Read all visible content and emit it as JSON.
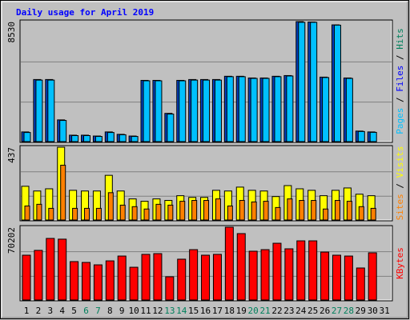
{
  "chart_data": [
    {
      "type": "bar",
      "title": "Daily usage for April 2019",
      "ylim": [
        0,
        8530
      ],
      "yticks": [
        {
          "value": 2843,
          "label": null
        },
        {
          "value": 5687,
          "label": null
        },
        {
          "value": 8530,
          "label": "8530"
        }
      ],
      "grid": true,
      "legend_separator": " / ",
      "legend": [
        {
          "label": "Pages",
          "color": "#00c0ff"
        },
        {
          "label": "Files",
          "color": "#0000ff"
        },
        {
          "label": "Hits",
          "color": "#00805c"
        }
      ],
      "series": [
        {
          "name": "Files",
          "color": "#0040c0",
          "values": [
            740,
            4440,
            4440,
            1590,
            510,
            510,
            450,
            740,
            570,
            450,
            4380,
            4380,
            2050,
            4380,
            4440,
            4440,
            4440,
            4670,
            4670,
            4550,
            4550,
            4670,
            4720,
            8530,
            8500,
            4610,
            8300,
            4550,
            800,
            740,
            0
          ]
        },
        {
          "name": "Pages",
          "color": "#00c0ff",
          "values": [
            700,
            4400,
            4400,
            1550,
            480,
            480,
            420,
            700,
            540,
            420,
            4350,
            4350,
            2000,
            4350,
            4400,
            4400,
            4400,
            4640,
            4640,
            4520,
            4520,
            4640,
            4690,
            8480,
            8480,
            4580,
            8280,
            4520,
            770,
            710,
            0
          ]
        }
      ]
    },
    {
      "type": "bar",
      "ylim": [
        0,
        437
      ],
      "yticks": [
        {
          "value": 146,
          "label": null
        },
        {
          "value": 291,
          "label": null
        },
        {
          "value": 437,
          "label": "437"
        }
      ],
      "grid": true,
      "legend_separator": " / ",
      "legend": [
        {
          "label": "Sites",
          "color": "#ff8000"
        },
        {
          "label": "Visits",
          "color": "#ffff00"
        }
      ],
      "series": [
        {
          "name": "Visits",
          "color": "#ffff00",
          "values": [
            205,
            177,
            190,
            437,
            181,
            177,
            177,
            270,
            177,
            130,
            116,
            130,
            121,
            149,
            139,
            139,
            181,
            177,
            200,
            181,
            177,
            144,
            209,
            190,
            181,
            149,
            181,
            195,
            158,
            149,
            0
          ]
        },
        {
          "name": "Sites",
          "color": "#ff8000",
          "values": [
            88,
            98,
            74,
            330,
            74,
            74,
            74,
            167,
            93,
            84,
            70,
            98,
            93,
            116,
            121,
            121,
            130,
            88,
            121,
            112,
            116,
            79,
            130,
            121,
            121,
            70,
            121,
            116,
            84,
            74,
            0
          ]
        }
      ]
    },
    {
      "type": "bar",
      "ylim": [
        0,
        70202
      ],
      "yticks": [
        {
          "value": 23401,
          "label": null
        },
        {
          "value": 46801,
          "label": null
        },
        {
          "value": 70202,
          "label": "70202"
        }
      ],
      "grid": true,
      "legend_separator": " / ",
      "legend": [
        {
          "label": "KBytes",
          "color": "#ff0000"
        }
      ],
      "categories": [
        "1",
        "2",
        "3",
        "4",
        "5",
        "6",
        "7",
        "8",
        "9",
        "10",
        "11",
        "12",
        "13",
        "14",
        "15",
        "16",
        "17",
        "18",
        "19",
        "20",
        "21",
        "22",
        "23",
        "24",
        "25",
        "26",
        "27",
        "28",
        "29",
        "30",
        "31"
      ],
      "category_colors": [
        "#000000",
        "#000000",
        "#000000",
        "#000000",
        "#000000",
        "#00805c",
        "#00805c",
        "#000000",
        "#000000",
        "#000000",
        "#000000",
        "#000000",
        "#00805c",
        "#00805c",
        "#000000",
        "#000000",
        "#000000",
        "#000000",
        "#000000",
        "#00805c",
        "#00805c",
        "#000000",
        "#000000",
        "#000000",
        "#000000",
        "#000000",
        "#00805c",
        "#00805c",
        "#000000",
        "#000000",
        "#000000"
      ],
      "series": [
        {
          "name": "KBytes",
          "color": "#ff0000",
          "values": [
            43500,
            48100,
            59500,
            58800,
            37400,
            36600,
            34300,
            38100,
            42700,
            32000,
            44300,
            45000,
            22900,
            39700,
            48800,
            43500,
            44300,
            70202,
            64100,
            47300,
            48800,
            54900,
            49600,
            57200,
            57200,
            46500,
            43500,
            42700,
            31300,
            45800,
            0
          ]
        }
      ]
    }
  ]
}
